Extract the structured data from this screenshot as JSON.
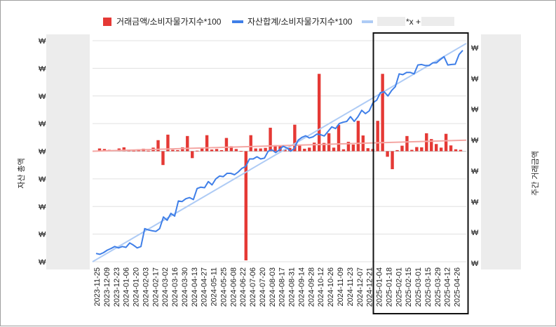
{
  "chart_data": {
    "type": "bar+line",
    "legend": {
      "position": "top",
      "items": [
        {
          "label": "거래금액/소비자물가지수*100",
          "color": "#e53935",
          "kind": "bar"
        },
        {
          "label": "자산합계/소비자물가지수*100",
          "color": "#3f7fe8",
          "kind": "line"
        },
        {
          "label": "*x +",
          "color": "#aecbf5",
          "kind": "trendline"
        }
      ]
    },
    "y_left_title": "자산 총액",
    "y_right_title": "주간 거래금액",
    "y_left_ticks": [
      "₩",
      "₩",
      "₩",
      "₩",
      "₩",
      "₩",
      "₩",
      "₩",
      "₩"
    ],
    "y_right_ticks": [
      "₩",
      "₩",
      "₩",
      "₩",
      "₩",
      "₩",
      "₩",
      "₩"
    ],
    "x_tick_labels": [
      "2023-11-25",
      "2023-12-09",
      "2023-12-23",
      "2024-01-06",
      "2024-01-20",
      "2024-02-03",
      "2024-02-17",
      "2024-03-02",
      "2024-03-16",
      "2024-03-30",
      "2024-04-13",
      "2024-04-27",
      "2024-05-11",
      "2024-05-25",
      "2024-06-08",
      "2024-06-22",
      "2024-07-06",
      "2024-07-20",
      "2024-08-03",
      "2024-08-17",
      "2024-08-31",
      "2024-09-14",
      "2024-09-28",
      "2024-10-12",
      "2024-10-26",
      "2024-11-09",
      "2024-11-23",
      "2024-12-07",
      "2024-12-21",
      "2025-01-04",
      "2025-01-18",
      "2025-02-01",
      "2025-02-15",
      "2025-03-01",
      "2025-03-15",
      "2025-03-29",
      "2025-04-12",
      "2025-04-26"
    ],
    "y_left_range": [
      0,
      8
    ],
    "y_right_range": [
      -4,
      4
    ],
    "grid": true,
    "series": [
      {
        "name": "자산합계/소비자물가지수*100",
        "axis": "left",
        "values": [
          0.3,
          0.27,
          0.33,
          0.42,
          0.48,
          0.55,
          0.5,
          0.55,
          0.52,
          0.68,
          0.6,
          0.5,
          0.55,
          1.2,
          1.15,
          1.12,
          1.1,
          1.2,
          1.62,
          1.5,
          1.75,
          1.65,
          2.2,
          2.18,
          2.28,
          2.32,
          2.25,
          2.65,
          2.7,
          2.68,
          2.9,
          2.78,
          3.0,
          3.1,
          3.08,
          3.2,
          3.2,
          3.15,
          3.25,
          3.38,
          3.45,
          3.72,
          3.72,
          3.8,
          3.72,
          3.75,
          4.0,
          4.05,
          3.95,
          4.05,
          4.18,
          4.12,
          4.0,
          4.1,
          4.4,
          4.5,
          4.56,
          4.48,
          4.52,
          4.62,
          4.6,
          4.55,
          4.72,
          4.88,
          4.82,
          5.0,
          5.05,
          5.08,
          5.25,
          5.08,
          5.25,
          5.48,
          5.36,
          5.46,
          5.75,
          5.85,
          6.12,
          6.15,
          6.0,
          6.2,
          6.34,
          6.8,
          6.77,
          6.85,
          6.85,
          6.8,
          7.12,
          7.14,
          7.1,
          7.1,
          7.2,
          7.2,
          7.32,
          7.42,
          7.12,
          7.14,
          7.15,
          7.5,
          7.65
        ]
      },
      {
        "name": "거래금액/소비자물가지수*100",
        "axis": "right",
        "values": [
          0.1,
          0.08,
          0.05,
          0.04,
          0.1,
          0.14,
          0.06,
          0.02,
          0.07,
          0.09,
          0.02,
          0.13,
          0.4,
          -0.5,
          0.6,
          0.05,
          0.04,
          0.14,
          0.55,
          -0.25,
          0.02,
          0.13,
          0.58,
          0.06,
          0.08,
          0.04,
          0.48,
          0.18,
          0.08,
          0.01,
          -3.95,
          0.58,
          0.1,
          0.1,
          0.12,
          0.85,
          0.22,
          0.2,
          0.06,
          0.12,
          0.96,
          0.22,
          0.09,
          0.13,
          0.31,
          2.8,
          0.3,
          0.65,
          0.13,
          0.95,
          0.07,
          0.34,
          0.24,
          1.1,
          0.57,
          0.11,
          0.08,
          1.1,
          2.8,
          -0.2,
          -0.65,
          0.04,
          0.2,
          0.55,
          0.05,
          0.15,
          0.14,
          0.65,
          0.44,
          0.26,
          0.13,
          0.63,
          0.21,
          0.07,
          0.05
        ]
      }
    ],
    "trendlines": [
      {
        "for": "자산합계/소비자물가지수*100",
        "axis": "left",
        "start": 0.0,
        "end": 7.9
      },
      {
        "for": "거래금액/소비자물가지수*100",
        "axis": "right",
        "start": 0.0,
        "end": 0.4
      }
    ],
    "highlight_box": {
      "from_label": "2025-01-04",
      "to_label": "2025-04-26"
    }
  }
}
